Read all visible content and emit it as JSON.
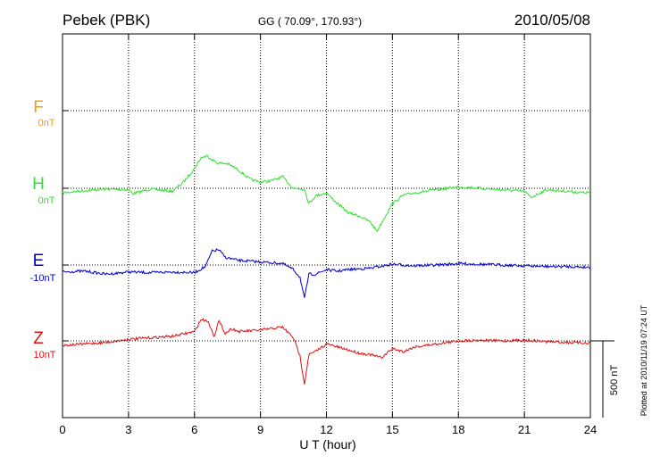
{
  "header": {
    "station": "Pebek (PBK)",
    "coords": "GG ( 70.09°, 170.93°)",
    "date": "2010/05/08"
  },
  "side_note": "Plotted at 2010/11/19 07:24 UT",
  "scale_label": "500 nT",
  "colors": {
    "F": "#f0a000",
    "H": "#33dd33",
    "E": "#0000cc",
    "Z": "#dd1111",
    "axis": "#000000"
  },
  "chart_data": {
    "type": "line",
    "title": "",
    "xlabel": "U T (hour)",
    "ylabel": "",
    "xlim": [
      0,
      24
    ],
    "xticks": [
      0,
      3,
      6,
      9,
      12,
      15,
      18,
      21,
      24
    ],
    "xtick_labels": [
      "0",
      "3",
      "6",
      "9",
      "12",
      "15",
      "18",
      "21",
      "24"
    ],
    "y_units": "nT",
    "y_scale_bar_nT": 500,
    "grid": true,
    "components": [
      {
        "name": "F",
        "baseline_label": "0nT"
      },
      {
        "name": "H",
        "baseline_label": "0nT"
      },
      {
        "name": "E",
        "baseline_label": "-10nT"
      },
      {
        "name": "Z",
        "baseline_label": "10nT"
      }
    ],
    "series": [
      {
        "name": "H",
        "x": [
          0,
          1,
          2,
          3,
          3.2,
          4,
          5,
          5.5,
          6,
          6.3,
          6.6,
          7,
          7.5,
          8,
          8.5,
          9,
          9.5,
          10,
          10.5,
          11,
          11.2,
          11.5,
          12,
          12.5,
          13,
          13.5,
          14,
          14.3,
          14.6,
          15,
          15.5,
          16,
          17,
          18,
          19,
          20,
          21,
          21.3,
          22,
          23,
          23.7,
          24
        ],
        "y": [
          -30,
          -15,
          -5,
          -10,
          -35,
          -5,
          -20,
          40,
          130,
          200,
          210,
          165,
          160,
          120,
          60,
          40,
          50,
          75,
          0,
          -5,
          -100,
          -50,
          -30,
          -100,
          -160,
          -180,
          -220,
          -280,
          -200,
          -100,
          -45,
          -30,
          -10,
          10,
          0,
          -10,
          -20,
          -60,
          -10,
          -20,
          -30,
          -25
        ]
      },
      {
        "name": "E",
        "x": [
          0,
          1,
          2,
          3,
          4,
          5,
          6,
          6.5,
          6.8,
          7.1,
          7.4,
          8,
          9,
          10,
          10.5,
          10.8,
          11,
          11.2,
          11.5,
          12,
          12.5,
          13,
          14,
          15,
          16,
          17,
          18,
          19,
          20,
          21,
          22,
          23,
          24
        ],
        "y": [
          -45,
          -40,
          -60,
          -45,
          -50,
          -45,
          -50,
          -10,
          90,
          100,
          50,
          30,
          20,
          10,
          -30,
          -80,
          -220,
          -60,
          -60,
          -30,
          -40,
          -30,
          -20,
          5,
          -5,
          0,
          10,
          5,
          0,
          -5,
          -10,
          -10,
          -15
        ]
      },
      {
        "name": "Z",
        "x": [
          0,
          1,
          2,
          3,
          4,
          5,
          6,
          6.3,
          6.6,
          6.9,
          7.1,
          7.4,
          7.7,
          8,
          9,
          10,
          10.5,
          10.8,
          11,
          11.2,
          11.5,
          12,
          12.5,
          13,
          13.5,
          14,
          14.5,
          15,
          15.5,
          16,
          17,
          18,
          19,
          20,
          21,
          22,
          23,
          24
        ],
        "y": [
          -30,
          -20,
          -10,
          10,
          20,
          30,
          60,
          140,
          130,
          30,
          130,
          50,
          80,
          60,
          70,
          90,
          20,
          -100,
          -280,
          -90,
          -70,
          -20,
          -40,
          -60,
          -80,
          -90,
          -110,
          -50,
          -70,
          -40,
          -20,
          0,
          5,
          0,
          5,
          -5,
          -10,
          -15
        ]
      }
    ]
  }
}
